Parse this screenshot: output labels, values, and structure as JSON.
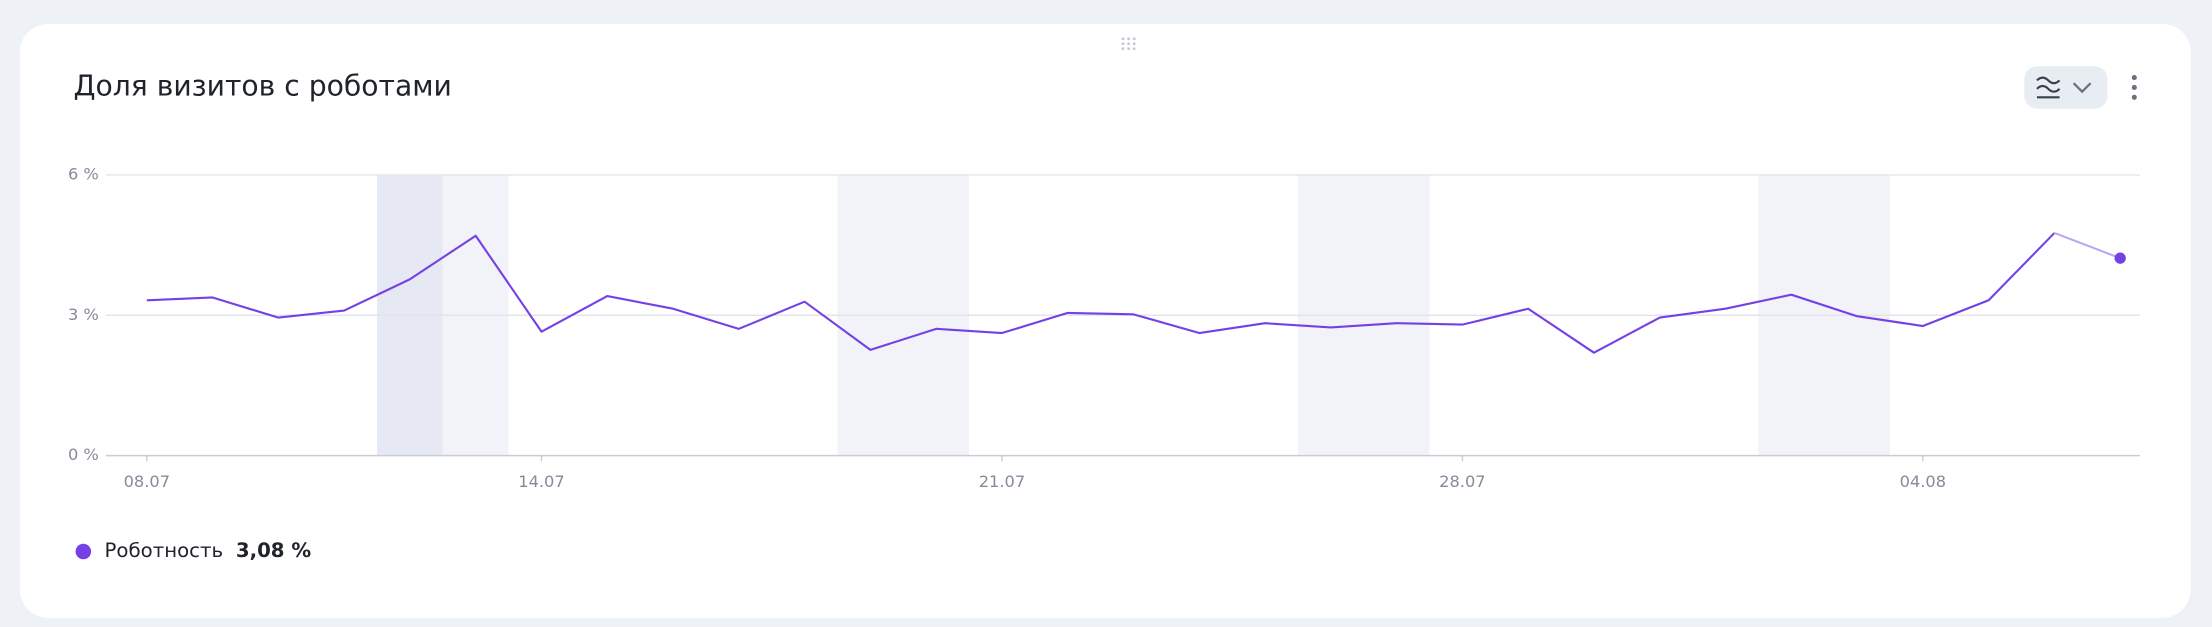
{
  "chart_data": {
    "type": "line",
    "title": "Доля визитов с роботами",
    "categories": [
      "08.07",
      null,
      null,
      null,
      null,
      null,
      "14.07",
      null,
      null,
      null,
      null,
      null,
      null,
      "21.07",
      null,
      null,
      null,
      null,
      null,
      null,
      "28.07",
      null,
      null,
      null,
      null,
      null,
      null,
      "04.08",
      null,
      null,
      null
    ],
    "series": [
      {
        "name": "Роботность",
        "color": "#7441e6",
        "summary": "3,08 %",
        "values": [
          3.32,
          3.38,
          2.95,
          3.1,
          3.77,
          4.7,
          2.65,
          3.41,
          3.14,
          2.71,
          3.29,
          2.26,
          2.71,
          2.62,
          3.05,
          3.02,
          2.62,
          2.83,
          2.74,
          2.83,
          2.8,
          3.14,
          2.2,
          2.95,
          3.14,
          3.44,
          2.98,
          2.77,
          3.32,
          4.76,
          4.22
        ]
      }
    ],
    "ylim": [
      0,
      6
    ],
    "yticks": [
      {
        "value": 0,
        "label": "0 %"
      },
      {
        "value": 3,
        "label": "3 %"
      },
      {
        "value": 6,
        "label": "6 %"
      }
    ],
    "grid": true,
    "shaded_categories": [
      4,
      5,
      11,
      12,
      18,
      19,
      25,
      26
    ],
    "highlighted_category": 4,
    "light_last_segment": true
  }
}
